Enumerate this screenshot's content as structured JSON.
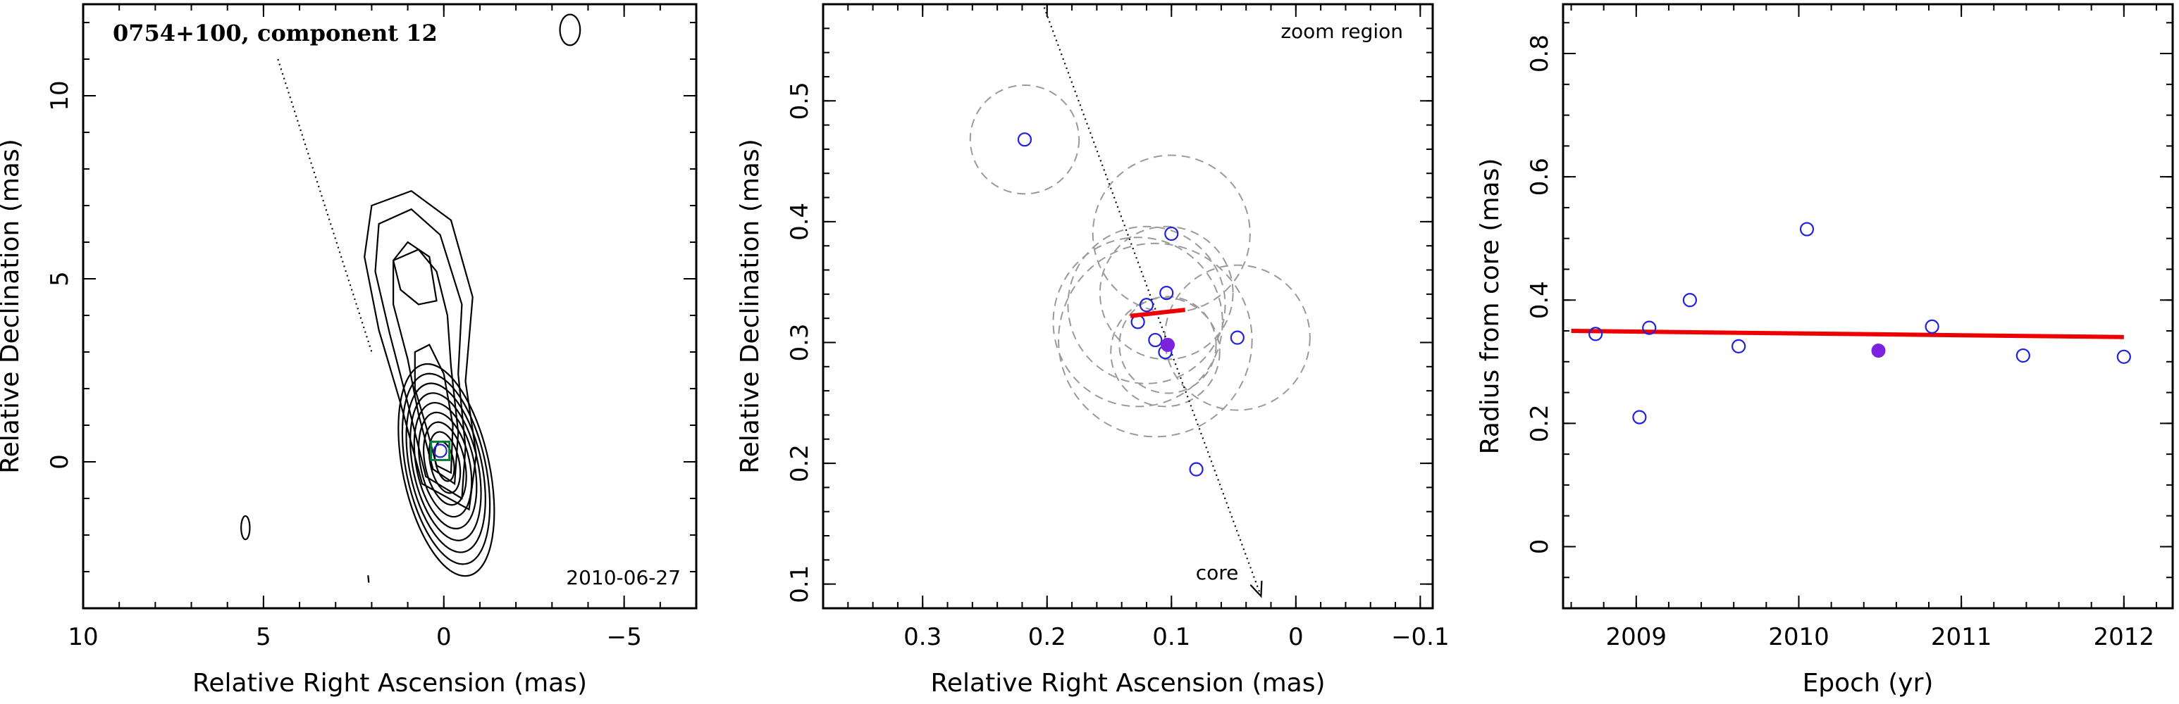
{
  "chart_data": [
    {
      "type": "contour",
      "title": "0754+100, component 12",
      "epoch_label": "2010-06-27",
      "xlabel": "Relative Right Ascension (mas)",
      "ylabel": "Relative Declination (mas)",
      "xlim": [
        10,
        -7
      ],
      "ylim": [
        -4,
        12.5
      ],
      "x_ticks": [
        10,
        5,
        0,
        -5
      ],
      "x_tick_labels": [
        "10",
        "5",
        "0",
        "−5"
      ],
      "y_ticks": [
        0,
        5,
        10
      ],
      "y_tick_labels": [
        "0",
        "5",
        "10"
      ],
      "component": {
        "x": 0.1,
        "y": 0.3
      },
      "direction_line": {
        "from": [
          4.6,
          11.0
        ],
        "to": [
          2.0,
          3.0
        ]
      }
    },
    {
      "type": "scatter",
      "annotation": "zoom region",
      "core_label": "core",
      "xlabel": "Relative Right Ascension (mas)",
      "ylabel": "Relative Declination (mas)",
      "xlim": [
        0.38,
        -0.11
      ],
      "ylim": [
        0.08,
        0.58
      ],
      "x_ticks": [
        0.3,
        0.2,
        0.1,
        0,
        -0.1
      ],
      "x_tick_labels": [
        "0.3",
        "0.2",
        "0.1",
        "0",
        "−0.1"
      ],
      "y_ticks": [
        0.1,
        0.2,
        0.3,
        0.4,
        0.5
      ],
      "y_tick_labels": [
        "0.1",
        "0.2",
        "0.3",
        "0.4",
        "0.5"
      ],
      "points": [
        {
          "x": 0.218,
          "y": 0.468
        },
        {
          "x": 0.1,
          "y": 0.39
        },
        {
          "x": 0.104,
          "y": 0.341
        },
        {
          "x": 0.12,
          "y": 0.331
        },
        {
          "x": 0.127,
          "y": 0.317
        },
        {
          "x": 0.113,
          "y": 0.302
        },
        {
          "x": 0.105,
          "y": 0.292
        },
        {
          "x": 0.047,
          "y": 0.304
        },
        {
          "x": 0.08,
          "y": 0.195
        }
      ],
      "highlight_point": {
        "x": 0.103,
        "y": 0.298
      },
      "error_circles": [
        {
          "x": 0.218,
          "y": 0.468,
          "r": 0.045
        },
        {
          "x": 0.1,
          "y": 0.39,
          "r": 0.065
        },
        {
          "x": 0.104,
          "y": 0.341,
          "r": 0.055
        },
        {
          "x": 0.12,
          "y": 0.331,
          "r": 0.065
        },
        {
          "x": 0.127,
          "y": 0.317,
          "r": 0.07
        },
        {
          "x": 0.113,
          "y": 0.302,
          "r": 0.08
        },
        {
          "x": 0.105,
          "y": 0.292,
          "r": 0.045
        },
        {
          "x": 0.047,
          "y": 0.304,
          "r": 0.06
        },
        {
          "x": 0.103,
          "y": 0.298,
          "r": 0.04
        }
      ],
      "trend": {
        "from": [
          0.133,
          0.322
        ],
        "to": [
          0.089,
          0.327
        ]
      },
      "direction_line": {
        "from": [
          0.205,
          0.585
        ],
        "to": [
          0.028,
          0.09
        ]
      }
    },
    {
      "type": "scatter",
      "xlabel": "Epoch (yr)",
      "ylabel": "Radius from core (mas)",
      "xlim": [
        2008.55,
        2012.3
      ],
      "ylim": [
        -0.1,
        0.88
      ],
      "x_ticks": [
        2009,
        2010,
        2011,
        2012
      ],
      "x_tick_labels": [
        "2009",
        "2010",
        "2011",
        "2012"
      ],
      "y_ticks": [
        0,
        0.2,
        0.4,
        0.6,
        0.8
      ],
      "y_tick_labels": [
        "0",
        "0.2",
        "0.4",
        "0.6",
        "0.8"
      ],
      "points": [
        {
          "x": 2008.75,
          "y": 0.345
        },
        {
          "x": 2009.02,
          "y": 0.21
        },
        {
          "x": 2009.08,
          "y": 0.355
        },
        {
          "x": 2009.33,
          "y": 0.4
        },
        {
          "x": 2009.63,
          "y": 0.325
        },
        {
          "x": 2010.05,
          "y": 0.515
        },
        {
          "x": 2010.82,
          "y": 0.357
        },
        {
          "x": 2011.38,
          "y": 0.31
        },
        {
          "x": 2012.0,
          "y": 0.308
        }
      ],
      "highlight_point": {
        "x": 2010.49,
        "y": 0.318
      },
      "trend": {
        "from": [
          2008.6,
          0.35
        ],
        "to": [
          2012.0,
          0.34
        ]
      }
    }
  ]
}
